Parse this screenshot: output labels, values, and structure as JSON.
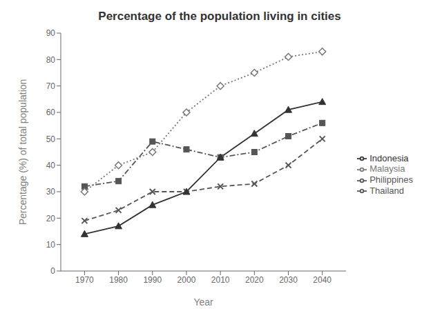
{
  "chart_data": {
    "type": "line",
    "title": "Percentage of the population living in cities",
    "xlabel": "Year",
    "ylabel": "Percentage (%) of total population",
    "x": [
      1970,
      1980,
      1990,
      2000,
      2010,
      2020,
      2030,
      2040
    ],
    "xlim": [
      1963,
      2047
    ],
    "xticks": [
      1970,
      1980,
      1990,
      2000,
      2010,
      2020,
      2030,
      2040
    ],
    "ylim": [
      0,
      90
    ],
    "yticks": [
      0,
      10,
      20,
      30,
      40,
      50,
      60,
      70,
      80,
      90
    ],
    "grid": false,
    "legend": "right",
    "series": [
      {
        "name": "Philippines",
        "color": "#555555",
        "marker": "square",
        "line_style": "dashdot",
        "values": [
          32,
          34,
          49,
          46,
          43,
          45,
          51,
          56
        ]
      },
      {
        "name": "Malaysia",
        "color": "#777777",
        "marker": "diamond",
        "line_style": "dotted",
        "values": [
          30,
          40,
          45,
          60,
          70,
          75,
          81,
          83
        ]
      },
      {
        "name": "Thailand",
        "color": "#555555",
        "marker": "x",
        "line_style": "dashed",
        "values": [
          19,
          23,
          30,
          30,
          32,
          33,
          40,
          50
        ]
      },
      {
        "name": "Indonesia",
        "color": "#333333",
        "marker": "triangle",
        "line_style": "solid",
        "values": [
          14,
          17,
          25,
          30,
          43,
          52,
          61,
          64
        ]
      }
    ]
  }
}
